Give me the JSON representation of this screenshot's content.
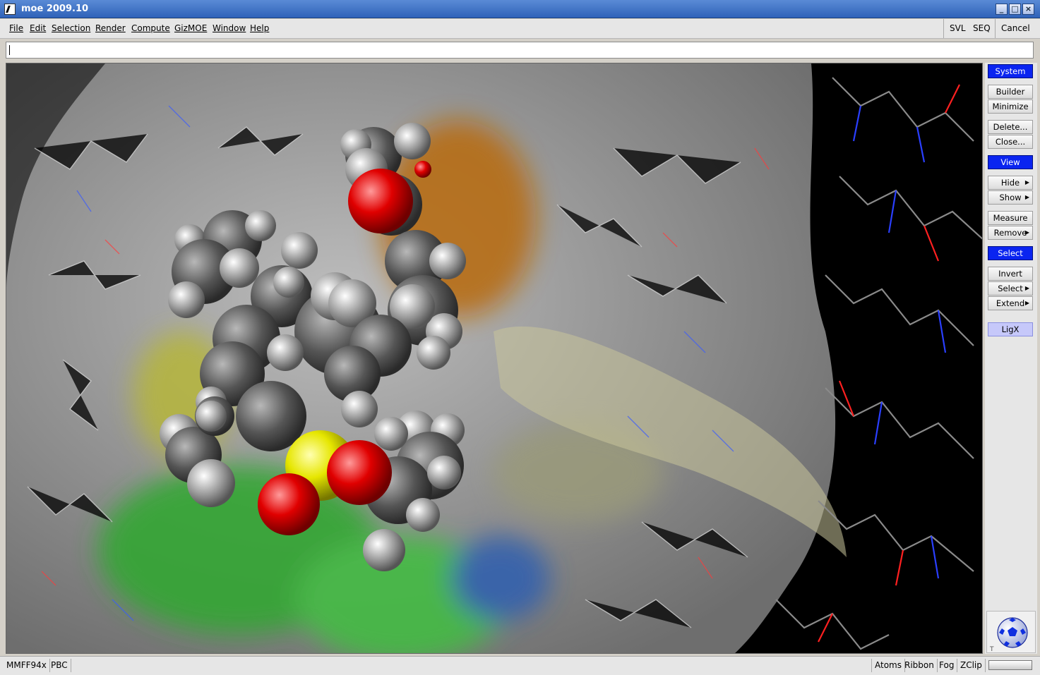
{
  "window": {
    "title": "moe 2009.10"
  },
  "menu": {
    "items": [
      {
        "label": "File"
      },
      {
        "label": "Edit"
      },
      {
        "label": "Selection"
      },
      {
        "label": "Render"
      },
      {
        "label": "Compute"
      },
      {
        "label": "GizMOE"
      },
      {
        "label": "Window"
      },
      {
        "label": "Help"
      }
    ],
    "right": {
      "svl": "SVL",
      "seq": "SEQ",
      "cancel": "Cancel"
    }
  },
  "command": {
    "value": ""
  },
  "side": {
    "system": "System",
    "builder": "Builder",
    "minimize": "Minimize",
    "delete": "Delete...",
    "close": "Close...",
    "view": "View",
    "hide": "Hide",
    "show": "Show",
    "measure": "Measure",
    "remove": "Remove",
    "select_header": "Select",
    "invert": "Invert",
    "select": "Select",
    "extend": "Extend",
    "ligx": "LigX"
  },
  "status": {
    "forcefield": "MMFF94x",
    "pbc": "PBC",
    "atoms": "Atoms",
    "ribbon": "Ribbon",
    "fog": "Fog",
    "zclip": "ZClip"
  },
  "colors": {
    "accent": "#0a24f0",
    "ligx": "#c6c8fa"
  }
}
